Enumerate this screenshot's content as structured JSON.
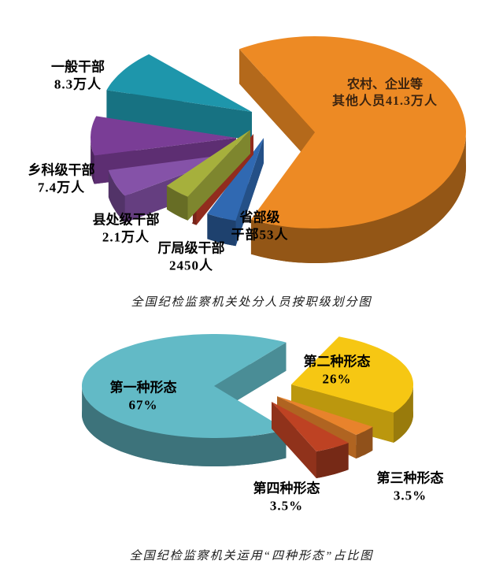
{
  "charts": [
    {
      "caption": "全国纪检监察机关处分人员按职级划分图",
      "chart_data": {
        "type": "pie",
        "style": "3d-exploded",
        "title": "全国纪检监察机关处分人员按职级划分图",
        "unit": "人",
        "legend": "none",
        "slices": [
          {
            "name": "rural-enterprise-other",
            "label": "农村、企业等其他人员",
            "value_text": "41.3万人",
            "value": 413000,
            "color": "#ED8A24"
          },
          {
            "name": "general-cadres",
            "label": "一般干部",
            "value_text": "8.3万人",
            "value": 83000,
            "color": "#1E96AB"
          },
          {
            "name": "township-section-cadres",
            "label": "乡科级干部",
            "value_text": "7.4万人",
            "value": 74000,
            "color": "#7A3D96"
          },
          {
            "name": "county-division-cadres",
            "label": "县处级干部",
            "value_text": "2.1万人",
            "value": 21000,
            "color": "#8552A8"
          },
          {
            "name": "bureau-level-cadres",
            "label": "厅局级干部",
            "value_text": "2450人",
            "value": 2450,
            "color": "#A6B03C"
          },
          {
            "name": "provincial-ministerial-cadres",
            "label": "省部级干部",
            "value_text": "53人",
            "value": 53,
            "color": "#3069B2"
          }
        ],
        "accent_divider_color": "#C03A28"
      },
      "labels": [
        {
          "line1": "一般干部",
          "line2": "8.3万人"
        },
        {
          "line1": "乡科级干部",
          "line2": "7.4万人"
        },
        {
          "line1": "县处级干部",
          "line2": "2.1万人"
        },
        {
          "line1": "厅局级干部",
          "line2": "2450人"
        },
        {
          "line1": "省部级",
          "line2": "干部53人"
        },
        {
          "line1": "农村、企业等",
          "line2": "其他人员41.3万人"
        }
      ]
    },
    {
      "caption": "全国纪检监察机关运用“四种形态”占比图",
      "chart_data": {
        "type": "pie",
        "style": "3d-exploded",
        "title": "全国纪检监察机关运用“四种形态”占比图",
        "unit": "%",
        "legend": "none",
        "slices": [
          {
            "name": "first-form",
            "label": "第一种形态",
            "value_text": "67%",
            "value": 67,
            "color": "#62BAC6"
          },
          {
            "name": "second-form",
            "label": "第二种形态",
            "value_text": "26%",
            "value": 26,
            "color": "#F6C713"
          },
          {
            "name": "third-form",
            "label": "第三种形态",
            "value_text": "3.5%",
            "value": 3.5,
            "color": "#E8832C"
          },
          {
            "name": "fourth-form",
            "label": "第四种形态",
            "value_text": "3.5%",
            "value": 3.5,
            "color": "#BE4223"
          }
        ]
      },
      "labels": [
        {
          "line1": "第一种形态",
          "line2": "67%"
        },
        {
          "line1": "第二种形态",
          "line2": "26%"
        },
        {
          "line1": "第三种形态",
          "line2": "3.5%"
        },
        {
          "line1": "第四种形态",
          "line2": "3.5%"
        }
      ]
    }
  ]
}
